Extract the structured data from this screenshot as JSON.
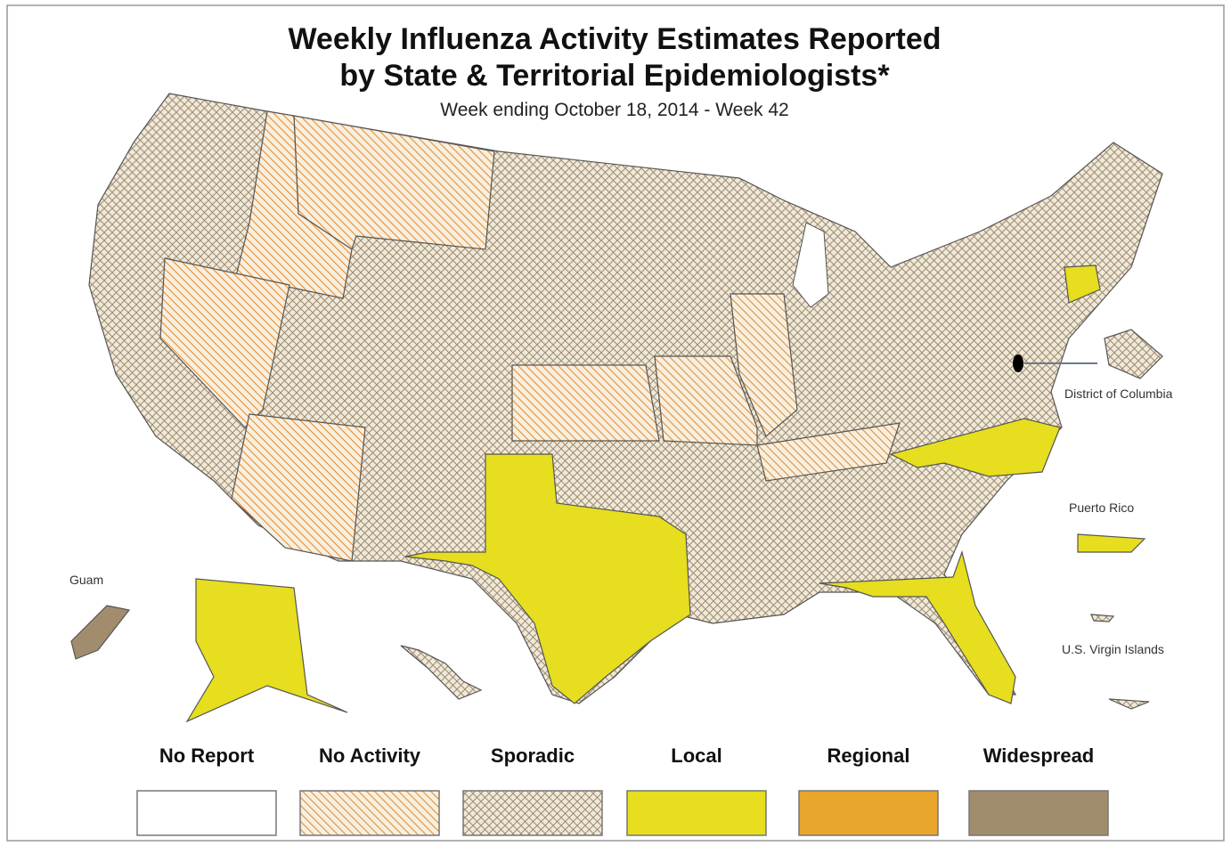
{
  "header": {
    "title_lines": [
      "Weekly Influenza Activity Estimates Reported",
      "by State & Territorial Epidemiologists*"
    ],
    "subtitle": "Week ending October 18, 2014 - Week 42"
  },
  "map_labels": {
    "guam": "Guam",
    "dc": "District of Columbia",
    "puerto_rico": "Puerto Rico",
    "virgin_islands": "U.S. Virgin Islands"
  },
  "legend": [
    {
      "label": "No Report",
      "color": "#ffffff",
      "pattern": "none"
    },
    {
      "label": "No Activity",
      "color": "#f7efdf",
      "pattern": "hatch",
      "line_color": "#e8892a"
    },
    {
      "label": "Sporadic",
      "color": "#f1e9d6",
      "pattern": "crosshatch",
      "line_color": "#9a8c78"
    },
    {
      "label": "Local",
      "color": "#e6de1e",
      "pattern": "none"
    },
    {
      "label": "Regional",
      "color": "#e9a62c",
      "pattern": "none"
    },
    {
      "label": "Widespread",
      "color": "#a18d6e",
      "pattern": "none"
    }
  ]
}
